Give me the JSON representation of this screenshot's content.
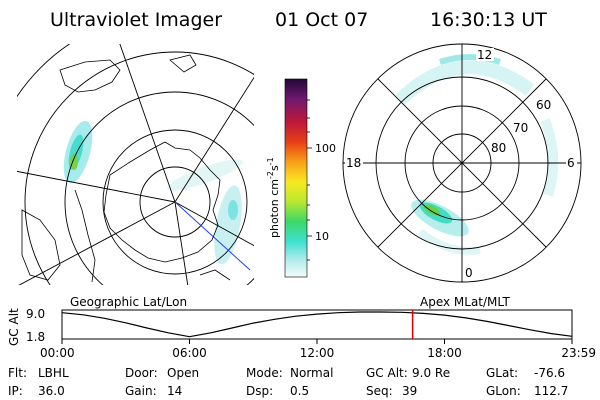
{
  "header": {
    "instrument": "Ultraviolet Imager",
    "date": "01 Oct 07",
    "time": "16:30:13 UT"
  },
  "colorbar": {
    "unit_label": "photon cm",
    "unit_exp1": "-2",
    "unit_mid": "s",
    "unit_exp2": "-1",
    "ticks": [
      "100",
      "10"
    ]
  },
  "left_panel": {
    "projection_label": "Geographic Lat/Lon"
  },
  "right_panel": {
    "projection_label": "Apex MLat/MLT",
    "mlt_labels": {
      "top": "12",
      "bottom": "0",
      "left": "18",
      "right": "6"
    },
    "lat_labels": [
      "60",
      "70",
      "80"
    ]
  },
  "orbit": {
    "ylabel": "GC Alt",
    "y_ticks": [
      "9.0",
      "1.8"
    ],
    "x_ticks": [
      "00:00",
      "06:00",
      "12:00",
      "18:00",
      "23:59"
    ],
    "current_time_hours": 16.5,
    "series": {
      "t_hours": [
        0,
        1,
        2,
        3,
        4,
        5,
        6,
        7,
        8,
        9,
        10,
        11,
        12,
        13,
        14,
        15,
        16,
        17,
        18,
        19,
        20,
        21,
        22,
        23,
        24
      ],
      "alt": [
        8.8,
        8.2,
        7.2,
        5.9,
        4.4,
        3.0,
        1.9,
        3.0,
        4.4,
        5.8,
        6.9,
        7.8,
        8.4,
        8.8,
        9.0,
        9.0,
        8.9,
        8.6,
        8.1,
        7.3,
        6.3,
        5.1,
        3.9,
        2.8,
        2.0
      ]
    },
    "ylim": [
      1.8,
      9.0
    ],
    "xlim": [
      0,
      24
    ]
  },
  "status": {
    "row1": [
      {
        "label": "Flt:",
        "value": "LBHL"
      },
      {
        "label": "Door:",
        "value": "Open"
      },
      {
        "label": "Mode:",
        "value": "Normal"
      },
      {
        "label": "GC Alt:",
        "value": "9.0 Re"
      },
      {
        "label": "GLat:",
        "value": "-76.6"
      }
    ],
    "row2": [
      {
        "label": "IP:",
        "value": "36.0"
      },
      {
        "label": "Gain:",
        "value": "14"
      },
      {
        "label": "Dsp:",
        "value": "0.5"
      },
      {
        "label": "Seq:",
        "value": "39"
      },
      {
        "label": "GLon:",
        "value": "112.7"
      }
    ]
  },
  "colors": {
    "orbit_marker": "#e00000",
    "aurora_low": "#8de8e8",
    "aurora_high": "#35d67a"
  }
}
